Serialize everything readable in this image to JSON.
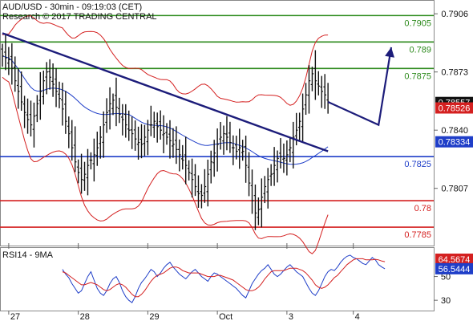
{
  "header": {
    "title": "AUD/USD - 30min - 09:19:03 (CET)",
    "subtitle": "Research © 2017 TRADING CENTRAL"
  },
  "chart_data": [
    {
      "type": "line",
      "price_axis": {
        "ticks": [
          {
            "value": 0.7906,
            "label": "0.7906"
          },
          {
            "value": 0.7873,
            "label": "0.7873"
          },
          {
            "value": 0.784,
            "label": "0.7840"
          },
          {
            "value": 0.7807,
            "label": "0.7807"
          }
        ],
        "range": [
          0.7775,
          0.7912
        ]
      },
      "x_axis": {
        "ticks": [
          {
            "index": 2,
            "label": "27"
          },
          {
            "index": 24,
            "label": "28"
          },
          {
            "index": 46,
            "label": "29"
          },
          {
            "index": 68,
            "label": "Oct"
          },
          {
            "index": 90,
            "label": "3"
          },
          {
            "index": 111,
            "label": "4"
          }
        ],
        "count": 124
      },
      "levels": [
        {
          "value": 0.7905,
          "label": "0.7905",
          "color": "#2e8b1e"
        },
        {
          "value": 0.789,
          "label": "0.789",
          "color": "#2e8b1e"
        },
        {
          "value": 0.7875,
          "label": "0.7875",
          "color": "#2e8b1e"
        },
        {
          "value": 0.7825,
          "label": "0.7825",
          "color": "#1f3ec8"
        },
        {
          "value": 0.78,
          "label": "0.78",
          "color": "#d42020"
        },
        {
          "value": 0.7785,
          "label": "0.7785",
          "color": "#d42020"
        }
      ],
      "price_tags": [
        {
          "value": 0.78557,
          "label": "0.78557",
          "color": "#111111"
        },
        {
          "value": 0.78526,
          "label": "0.78526",
          "color": "#d42020"
        },
        {
          "value": 0.78334,
          "label": "0.78334",
          "color": "#1f3ec8"
        }
      ],
      "trendline": {
        "from": {
          "index": 0,
          "value": 0.7895
        },
        "to": {
          "index": 103,
          "value": 0.7828
        },
        "color": "#1c1c7a"
      },
      "forecast_arrow": {
        "points": [
          {
            "index": 119,
            "value": 0.7843
          },
          {
            "index": 123,
            "value": 0.7887
          }
        ],
        "color": "#1c1c7a"
      },
      "colors": {
        "candles": "#111111",
        "bollinger": "#d42020",
        "moving_average": "#1f3ec8"
      },
      "price_close": [
        0.7882,
        0.7881,
        0.788,
        0.7875,
        0.7868,
        0.7862,
        0.7856,
        0.785,
        0.7846,
        0.7843,
        0.7848,
        0.7855,
        0.7862,
        0.7868,
        0.7873,
        0.787,
        0.7866,
        0.7862,
        0.7858,
        0.7852,
        0.7845,
        0.7838,
        0.783,
        0.7822,
        0.7816,
        0.7812,
        0.7815,
        0.782,
        0.7823,
        0.7826,
        0.783,
        0.7836,
        0.7843,
        0.785,
        0.7855,
        0.7857,
        0.7853,
        0.7849,
        0.7846,
        0.7843,
        0.784,
        0.7838,
        0.7835,
        0.7833,
        0.7832,
        0.7836,
        0.784,
        0.7843,
        0.7845,
        0.7842,
        0.784,
        0.7838,
        0.7836,
        0.7834,
        0.7832,
        0.7829,
        0.7826,
        0.7823,
        0.782,
        0.7816,
        0.7812,
        0.7808,
        0.7804,
        0.7803,
        0.7808,
        0.7815,
        0.7822,
        0.7827,
        0.7832,
        0.7836,
        0.7838,
        0.7836,
        0.7833,
        0.783,
        0.7828,
        0.783,
        0.7828,
        0.782,
        0.781,
        0.78,
        0.7793,
        0.7795,
        0.7802,
        0.7808,
        0.7812,
        0.7815,
        0.782,
        0.7824,
        0.7825,
        0.7824,
        0.7826,
        0.783,
        0.7836,
        0.784,
        0.7845,
        0.7852,
        0.786,
        0.7868,
        0.7872,
        0.7868,
        0.7865,
        0.7862,
        0.786,
        0.7856
      ],
      "price_start_index": 0,
      "rsi_panel": {
        "title": "RSI14 - 9MA",
        "ticks": [
          {
            "value": 50,
            "label": "50"
          },
          {
            "value": 30,
            "label": "30"
          }
        ],
        "range": [
          22,
          72
        ],
        "tags": [
          {
            "value": 64.5674,
            "label": "64.5674",
            "color": "#d42020"
          },
          {
            "value": 56.5444,
            "label": "56.5444",
            "color": "#1f3ec8"
          }
        ],
        "rsi": [
          56,
          52,
          49,
          44,
          40,
          36,
          38,
          44,
          50,
          54,
          47,
          40,
          36,
          34,
          38,
          44,
          48,
          50,
          45,
          38,
          33,
          30,
          28,
          33,
          40,
          45,
          48,
          52,
          56,
          54,
          50,
          53,
          57,
          60,
          62,
          58,
          55,
          52,
          50,
          48,
          51,
          54,
          56,
          53,
          50,
          48,
          46,
          50,
          53,
          52,
          50,
          48,
          46,
          44,
          42,
          40,
          37,
          34,
          32,
          38,
          44,
          48,
          52,
          55,
          57,
          60,
          56,
          52,
          50,
          52,
          55,
          58,
          60,
          57,
          54,
          52,
          50,
          45,
          40,
          36,
          34,
          38,
          44,
          50,
          54,
          56,
          55,
          58,
          62,
          65,
          67,
          68,
          66,
          65,
          63,
          61,
          60,
          63,
          66,
          64,
          60,
          58,
          56.5
        ],
        "rsi_ma": [
          54,
          53,
          51,
          49,
          47,
          45,
          43,
          43,
          44,
          45,
          44,
          43,
          41,
          39,
          38,
          39,
          41,
          43,
          44,
          43,
          41,
          38,
          35,
          33,
          33,
          35,
          38,
          42,
          46,
          49,
          51,
          52,
          53,
          55,
          57,
          58,
          58,
          57,
          55,
          54,
          53,
          53,
          53,
          53,
          52,
          51,
          50,
          50,
          50,
          51,
          51,
          50,
          49,
          48,
          47,
          45,
          43,
          41,
          39,
          38,
          38,
          39,
          41,
          44,
          48,
          51,
          54,
          55,
          55,
          55,
          55,
          56,
          57,
          57,
          57,
          56,
          55,
          53,
          50,
          47,
          43,
          41,
          40,
          41,
          43,
          46,
          49,
          51,
          54,
          57,
          60,
          62,
          64,
          65,
          65,
          65,
          64,
          64,
          64,
          64.5,
          64,
          63,
          62.5
        ],
        "start_index": 19
      }
    }
  ]
}
